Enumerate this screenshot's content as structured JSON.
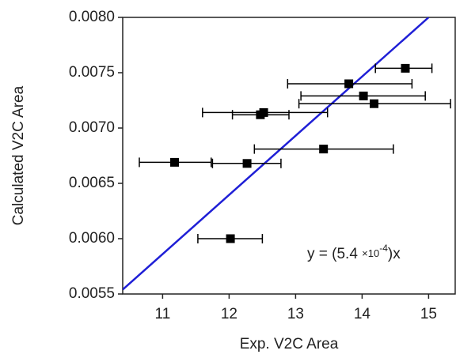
{
  "chart_data": {
    "type": "scatter",
    "x_label": "Exp. V2C Area",
    "y_label": "Calculated V2C Area",
    "xlim": [
      10.4,
      15.4
    ],
    "xticks": [
      11,
      12,
      13,
      14,
      15
    ],
    "ylim": [
      0.0055,
      0.008
    ],
    "yticks": [
      {
        "value": 0.0055,
        "label": "0.0055"
      },
      {
        "value": 0.006,
        "label": "0.0060"
      },
      {
        "value": 0.0065,
        "label": "0.0065"
      },
      {
        "value": 0.007,
        "label": "0.0070"
      },
      {
        "value": 0.0075,
        "label": "0.0075"
      },
      {
        "value": 0.008,
        "label": "0.0080"
      }
    ],
    "x": [
      14.65,
      13.8,
      14.02,
      14.18,
      12.52,
      12.47,
      13.42,
      11.18,
      12.27,
      12.02
    ],
    "values": [
      0.00754,
      0.0074,
      0.00729,
      0.00722,
      0.00714,
      0.00712,
      0.00681,
      0.00669,
      0.00668,
      0.006
    ],
    "x_low": [
      14.2,
      12.88,
      13.08,
      13.05,
      11.6,
      12.05,
      12.38,
      10.65,
      11.75,
      11.53
    ],
    "x_high": [
      15.05,
      14.75,
      14.95,
      15.33,
      13.48,
      12.9,
      14.47,
      11.73,
      12.78,
      12.5
    ],
    "color": "#000000",
    "fit": {
      "x": [
        10.4,
        15.0
      ],
      "y": [
        0.00554,
        0.008
      ],
      "color": "#1f1fd6"
    },
    "annotation": [
      "y = (5.4 ",
      "×10",
      "-4",
      ")x"
    ]
  }
}
